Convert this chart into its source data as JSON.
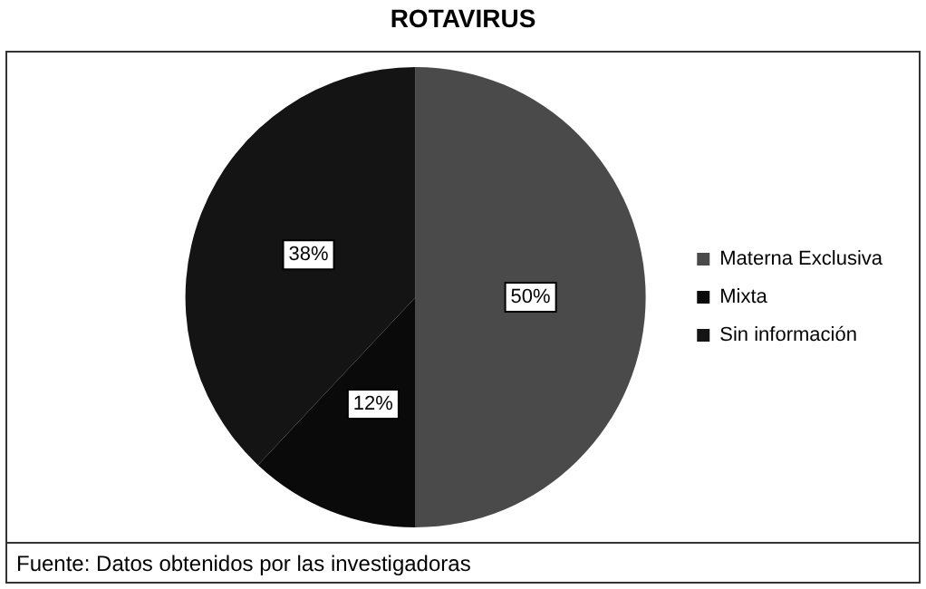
{
  "chart_data": {
    "type": "pie",
    "title": "ROTAVIRUS",
    "categories": [
      "Materna Exclusiva",
      "Mixta",
      "Sin información"
    ],
    "values": [
      50,
      12,
      38
    ],
    "colors": [
      "#4a4a4a",
      "#0a0a0a",
      "#141414"
    ],
    "value_labels": [
      "50%",
      "12%",
      "38%"
    ],
    "legend": "right",
    "annotations": [
      "Fuente: Datos obtenidos  por las investigadoras"
    ]
  }
}
